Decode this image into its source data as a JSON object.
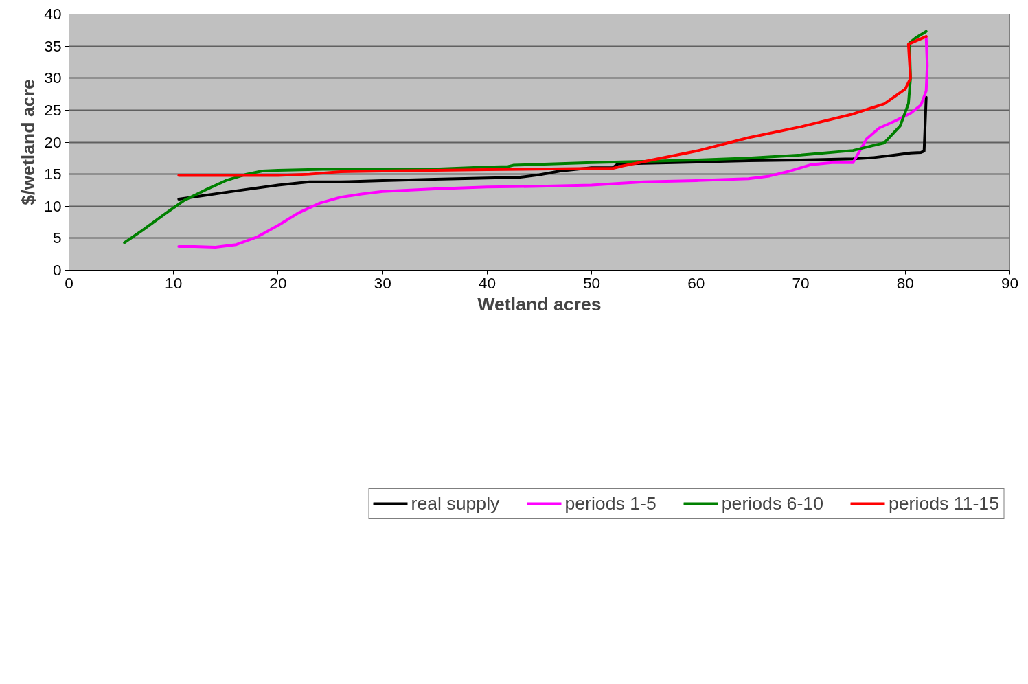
{
  "chart_data": {
    "type": "line",
    "xlabel": "Wetland acres",
    "ylabel": "$/wetland acre",
    "xlim": [
      0,
      90
    ],
    "xticks": [
      0,
      10,
      20,
      30,
      40,
      50,
      60,
      70,
      80,
      90
    ],
    "ylim": [
      0,
      40
    ],
    "yticks": [
      0,
      5,
      10,
      15,
      20,
      25,
      30,
      35,
      40
    ],
    "grid": "y",
    "legend": "bottom",
    "marker": "none",
    "line_style": "solid",
    "series": [
      {
        "name": "real supply",
        "color": "#000000",
        "x": [
          10.5,
          13,
          16,
          20,
          23,
          26,
          30,
          35,
          40,
          43,
          45,
          47,
          50,
          52,
          52.5,
          55,
          60,
          65,
          70,
          75,
          77,
          79,
          80.5,
          81.5,
          81.8,
          82
        ],
        "values": [
          11.1,
          11.7,
          12.4,
          13.3,
          13.8,
          13.8,
          14.0,
          14.2,
          14.4,
          14.5,
          14.9,
          15.5,
          16.0,
          16.0,
          16.6,
          16.7,
          16.9,
          17.1,
          17.2,
          17.4,
          17.6,
          18.0,
          18.3,
          18.4,
          18.6,
          27
        ]
      },
      {
        "name": "periods 1-5",
        "color": "#ff00ff",
        "x": [
          10.5,
          12,
          14,
          16,
          18,
          20,
          22,
          24,
          26,
          28,
          30,
          35,
          40,
          45,
          50,
          55,
          60,
          65,
          67,
          69,
          71,
          73,
          75,
          75.6,
          76.3,
          77.5,
          79,
          80.5,
          81.5,
          82,
          82.1,
          82
        ],
        "values": [
          3.7,
          3.7,
          3.6,
          4.0,
          5.2,
          7.0,
          9.0,
          10.5,
          11.4,
          11.9,
          12.3,
          12.7,
          13.0,
          13.1,
          13.3,
          13.8,
          14.0,
          14.3,
          14.7,
          15.5,
          16.5,
          16.8,
          16.8,
          18.5,
          20.5,
          22.2,
          23.3,
          24.5,
          25.8,
          28,
          32,
          36.5
        ]
      },
      {
        "name": "periods 6-10",
        "color": "#008000",
        "x": [
          5.3,
          7,
          9,
          11,
          13,
          15,
          17,
          18.5,
          20,
          25,
          30,
          35,
          40,
          42,
          42.5,
          50,
          55,
          60,
          65,
          70,
          75,
          78,
          79.5,
          80.3,
          80.5,
          80.4,
          81,
          82
        ],
        "values": [
          4.3,
          6.2,
          8.6,
          10.9,
          12.5,
          14.0,
          15.0,
          15.5,
          15.6,
          15.8,
          15.7,
          15.8,
          16.1,
          16.2,
          16.4,
          16.8,
          17.0,
          17.2,
          17.5,
          18.0,
          18.7,
          19.9,
          22.5,
          26,
          30,
          35.5,
          36.3,
          37.3
        ]
      },
      {
        "name": "periods 11-15",
        "color": "#ff0000",
        "x": [
          10.5,
          15,
          20,
          23,
          26,
          30,
          40,
          50,
          52,
          53,
          56,
          60,
          65,
          70,
          75,
          78,
          80,
          80.5,
          80.3,
          81,
          82
        ],
        "values": [
          14.8,
          14.8,
          14.8,
          15.0,
          15.4,
          15.5,
          15.7,
          15.9,
          15.9,
          16.3,
          17.3,
          18.6,
          20.7,
          22.4,
          24.4,
          26.0,
          28.3,
          30,
          35.3,
          35.8,
          36.5
        ]
      }
    ]
  }
}
